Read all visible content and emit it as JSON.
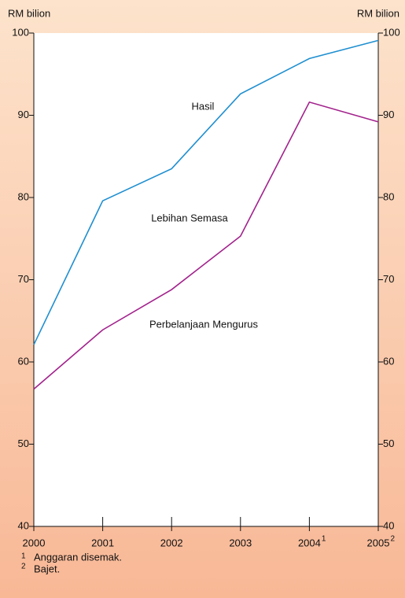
{
  "chart_data": {
    "type": "line",
    "y_label": "RM bilion",
    "y2_label": "RM bilion",
    "x": [
      2000,
      2001,
      2002,
      2003,
      2004,
      2005
    ],
    "x_notes": [
      null,
      null,
      null,
      null,
      "1",
      "2"
    ],
    "xlim": [
      2000,
      2005
    ],
    "xticks": [
      2000,
      2001,
      2002,
      2003,
      2004,
      2005
    ],
    "ylim": [
      40,
      100
    ],
    "yticks": [
      40,
      50,
      60,
      70,
      80,
      90,
      100
    ],
    "y2lim": [
      40,
      100
    ],
    "y2ticks": [
      40,
      50,
      60,
      70,
      80,
      90,
      100
    ],
    "series": [
      {
        "name": "Hasil",
        "color": "#1f8fd0",
        "values": [
          62.1,
          79.6,
          83.5,
          92.6,
          96.9,
          99.1
        ]
      },
      {
        "name": "Perbelanjaan Mengurus",
        "color": "#a2228c",
        "values": [
          56.7,
          63.9,
          68.8,
          75.3,
          91.6,
          89.2
        ]
      }
    ],
    "annotations": [
      "Lebihan Semasa"
    ],
    "footnotes": [
      {
        "marker": "1",
        "text": "Anggaran disemak."
      },
      {
        "marker": "2",
        "text": "Bajet."
      }
    ]
  }
}
